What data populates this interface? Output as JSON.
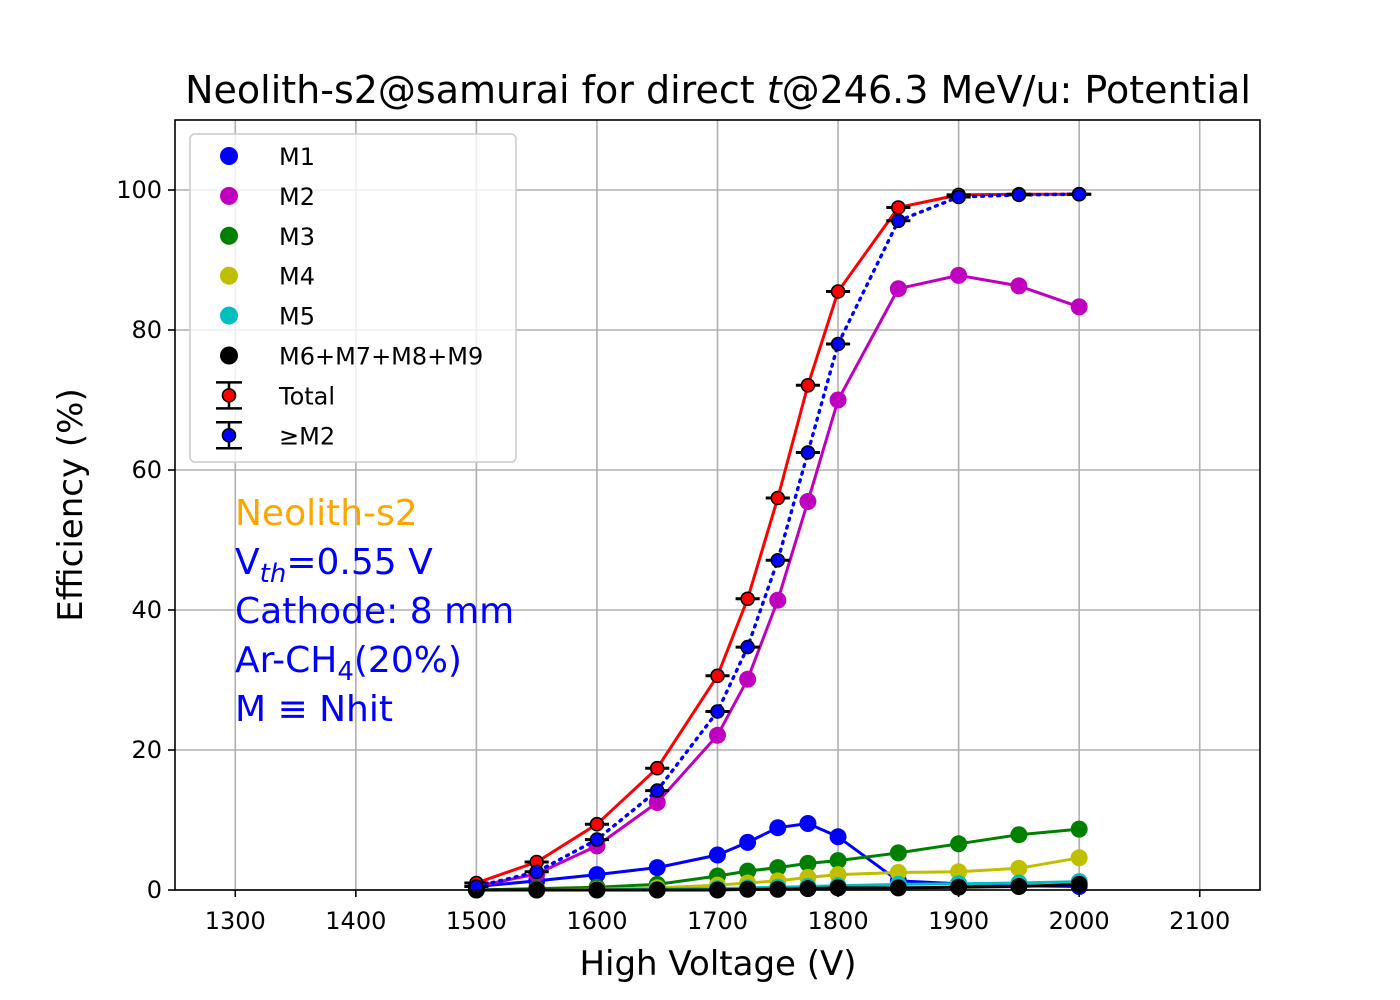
{
  "chart_data": {
    "type": "line",
    "title": "Neolith-s2@samurai for direct t@246.3 MeV/u: Potential",
    "title_parts": {
      "prefix": "Neolith-s2@samurai for direct ",
      "italic": "t",
      "suffix": "@246.3 MeV/u: Potential"
    },
    "xlabel": "High Voltage (V)",
    "ylabel": "Efficiency (%)",
    "xlim": [
      1250,
      2150
    ],
    "ylim": [
      0,
      110
    ],
    "xticks": [
      1300,
      1400,
      1500,
      1600,
      1700,
      1800,
      1900,
      2000,
      2100
    ],
    "yticks": [
      0,
      20,
      40,
      60,
      80,
      100
    ],
    "grid": true,
    "legend_position": "top-left",
    "x": [
      1500,
      1550,
      1600,
      1650,
      1700,
      1725,
      1750,
      1775,
      1800,
      1850,
      1900,
      1950,
      2000
    ],
    "series": [
      {
        "name": "M1",
        "color": "#0000ff",
        "marker": "circle",
        "line": "solid",
        "values": [
          0.5,
          1.3,
          2.2,
          3.2,
          5.0,
          6.8,
          8.9,
          9.5,
          7.6,
          1.3,
          0.9,
          0.6,
          0.5
        ]
      },
      {
        "name": "M2",
        "color": "#bf00bf",
        "marker": "circle",
        "line": "solid",
        "values": [
          0.5,
          2.3,
          6.3,
          12.5,
          22.1,
          30.1,
          41.4,
          55.5,
          70.0,
          85.9,
          87.8,
          86.3,
          83.3
        ]
      },
      {
        "name": "M3",
        "color": "#008000",
        "marker": "circle",
        "line": "solid",
        "values": [
          0.0,
          0.2,
          0.4,
          0.8,
          2.0,
          2.7,
          3.2,
          3.8,
          4.2,
          5.3,
          6.6,
          7.9,
          8.7
        ]
      },
      {
        "name": "M4",
        "color": "#bfbf00",
        "marker": "circle",
        "line": "solid",
        "values": [
          0.0,
          0.0,
          0.1,
          0.3,
          0.7,
          1.0,
          1.3,
          1.8,
          2.2,
          2.5,
          2.6,
          3.1,
          4.6
        ]
      },
      {
        "name": "M5",
        "color": "#00bfbf",
        "marker": "circle",
        "line": "solid",
        "values": [
          0.0,
          0.0,
          0.0,
          0.1,
          0.2,
          0.3,
          0.4,
          0.5,
          0.6,
          0.8,
          0.9,
          1.0,
          1.2
        ]
      },
      {
        "name": "M6+M7+M8+M9",
        "color": "#000000",
        "marker": "circle",
        "line": "solid",
        "values": [
          0.0,
          0.0,
          0.0,
          0.0,
          0.0,
          0.1,
          0.1,
          0.2,
          0.3,
          0.3,
          0.4,
          0.5,
          0.8
        ]
      },
      {
        "name": "Total",
        "color": "#ff0000",
        "marker": "circle-errorbar",
        "line": "solid",
        "xerr": 10,
        "values": [
          1.0,
          4.0,
          9.4,
          17.4,
          30.6,
          41.6,
          56.0,
          72.1,
          85.5,
          97.5,
          99.3,
          99.4,
          99.4
        ]
      },
      {
        "name": "≥M2",
        "color": "#0000ff",
        "marker": "circle-errorbar",
        "line": "dotted",
        "xerr": 10,
        "values": [
          0.5,
          2.6,
          7.2,
          14.2,
          25.5,
          34.7,
          47.1,
          62.5,
          78.0,
          95.6,
          99.0,
          99.3,
          99.4
        ]
      }
    ],
    "annotations": [
      {
        "text": "Neolith-s2",
        "color": "#ffa500"
      },
      {
        "text": "V",
        "sub": "th",
        "suffix": "=0.55 V",
        "color": "#0000ff"
      },
      {
        "text": "Cathode: 8 mm",
        "color": "#0000ff"
      },
      {
        "text": "Ar-CH",
        "sub": "4",
        "suffix": "(20%)",
        "color": "#0000ff"
      },
      {
        "text": "M ≡ Nhit",
        "color": "#0000ff"
      }
    ]
  }
}
